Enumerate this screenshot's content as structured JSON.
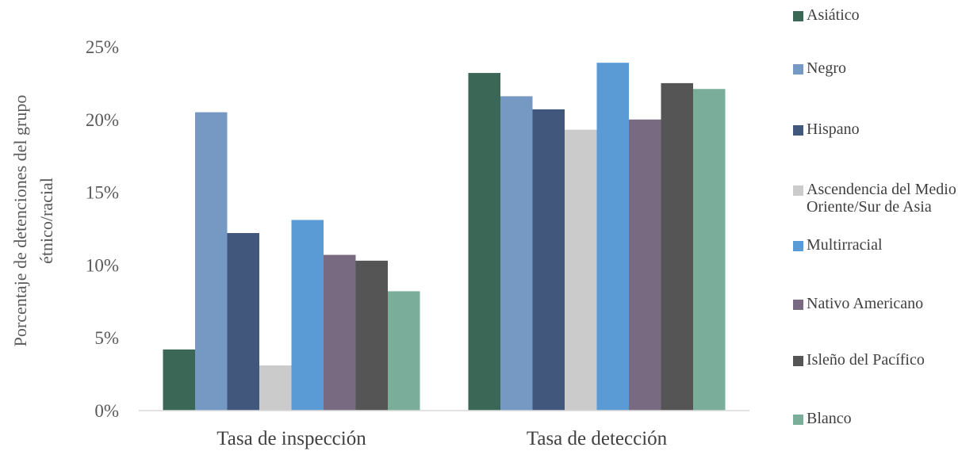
{
  "chart_data": {
    "type": "bar",
    "title": "",
    "xlabel": "",
    "ylabel": "Porcentaje de detenciones del grupo étnico/racial",
    "ylabel_lines": [
      "Porcentaje de detenciones del grupo",
      "étnico/racial"
    ],
    "ylim": [
      0,
      25
    ],
    "yticks": [
      "0%",
      "5%",
      "10%",
      "15%",
      "20%",
      "25%"
    ],
    "grid": false,
    "legend_position": "right",
    "categories": [
      "Tasa de inspección",
      "Tasa de detección"
    ],
    "series": [
      {
        "name": "Asiático",
        "color": "#3b6757",
        "values": [
          4.2,
          23.2
        ]
      },
      {
        "name": "Negro",
        "color": "#7599c2",
        "values": [
          20.5,
          21.6
        ]
      },
      {
        "name": "Hispano",
        "color": "#41577c",
        "values": [
          12.2,
          20.7
        ]
      },
      {
        "name": "Ascendencia del Medio Oriente/Sur de Asia",
        "color": "#cbcbcb",
        "values": [
          3.1,
          19.3
        ]
      },
      {
        "name": "Multirracial",
        "color": "#5b9bd5",
        "values": [
          13.1,
          23.9
        ]
      },
      {
        "name": "Nativo Americano",
        "color": "#786a81",
        "values": [
          10.7,
          20.0
        ]
      },
      {
        "name": "Isleño del Pacífico",
        "color": "#555555",
        "values": [
          10.3,
          22.5
        ]
      },
      {
        "name": "Blanco",
        "color": "#7aae9b",
        "values": [
          8.2,
          22.1
        ]
      }
    ]
  }
}
